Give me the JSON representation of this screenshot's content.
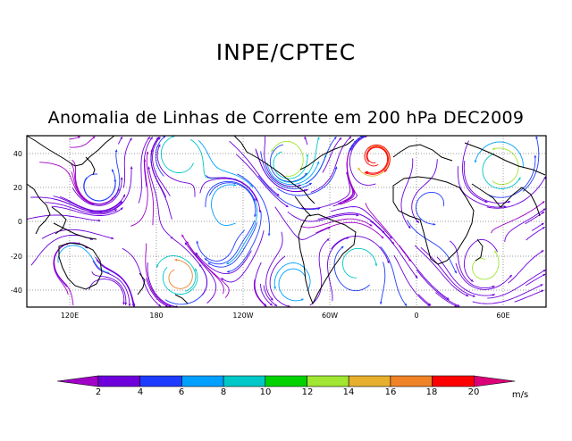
{
  "header": {
    "title": "INPE/CPTEC"
  },
  "map": {
    "title": "Anomalia de Linhas de Corrente em 200 hPa DEC2009",
    "lat_ticks": [
      "40",
      "20",
      "0",
      "-20",
      "-40"
    ],
    "lon_ticks": [
      "120E",
      "180",
      "120W",
      "60W",
      "0",
      "60E"
    ]
  },
  "colorbar": {
    "unit": "m/s",
    "labels": [
      "2",
      "4",
      "6",
      "8",
      "10",
      "12",
      "14",
      "16",
      "18",
      "20"
    ],
    "colors": [
      "#a000c8",
      "#6e00dc",
      "#1e3cff",
      "#00a0ff",
      "#00c8c8",
      "#00d200",
      "#a0e632",
      "#e6af2d",
      "#f08228",
      "#ff0000",
      "#dc0078"
    ]
  }
}
